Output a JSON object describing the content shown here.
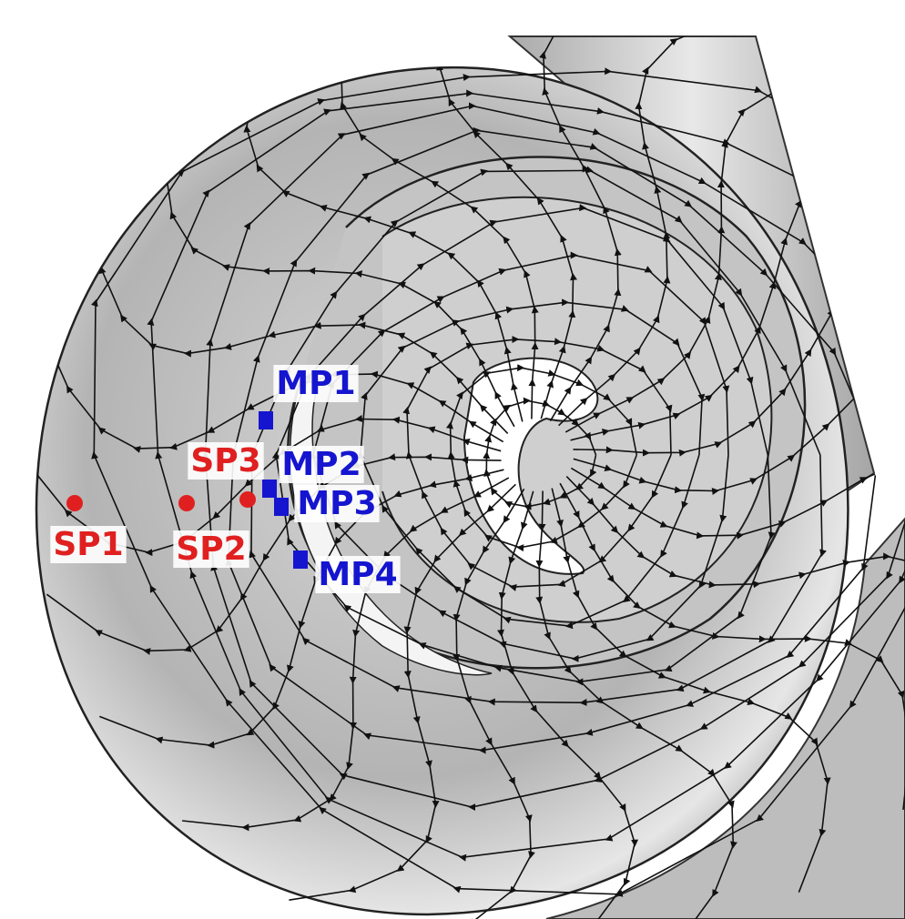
{
  "points": [
    {
      "label": "SP1"
    },
    {
      "label": "SP2"
    },
    {
      "label": "SP3"
    },
    {
      "label": "MP1"
    },
    {
      "label": "MP2"
    },
    {
      "label": "MP3"
    },
    {
      "label": "MP4"
    }
  ]
}
